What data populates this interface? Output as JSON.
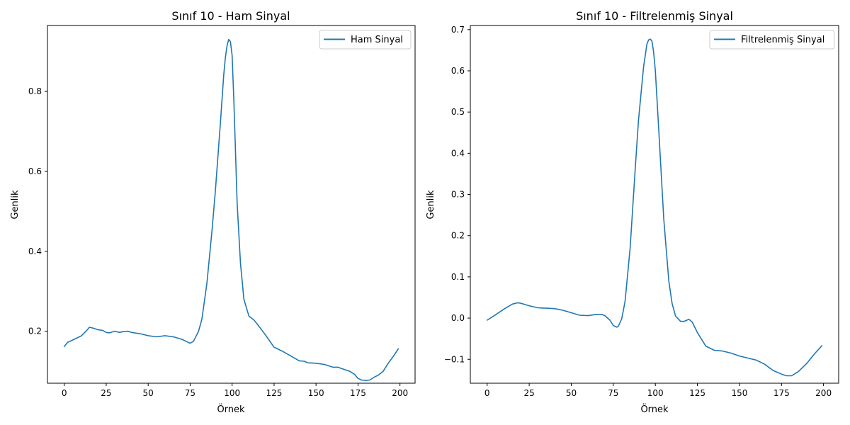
{
  "chart_data": [
    {
      "type": "line",
      "title": "Sınıf 10 - Ham Sinyal",
      "xlabel": "Örnek",
      "ylabel": "Genlik",
      "xlim": [
        -10,
        209
      ],
      "ylim": [
        0.07,
        0.965
      ],
      "xticks": [
        0,
        25,
        50,
        75,
        100,
        125,
        150,
        175,
        200
      ],
      "yticks": [
        0.2,
        0.4,
        0.6,
        0.8
      ],
      "ytick_labels": [
        "0.2",
        "0.4",
        "0.6",
        "0.8"
      ],
      "grid": false,
      "legend_position": "top-right",
      "series": [
        {
          "name": "Ham Sinyal",
          "color": "#1f77b4",
          "x": [
            0,
            2,
            5,
            10,
            13,
            15,
            17,
            20,
            23,
            25,
            27,
            30,
            33,
            35,
            38,
            40,
            45,
            50,
            55,
            60,
            65,
            70,
            73,
            75,
            77,
            80,
            82,
            85,
            88,
            90,
            93,
            95,
            96,
            97,
            98,
            99,
            100,
            101,
            103,
            105,
            107,
            110,
            113,
            115,
            120,
            125,
            130,
            135,
            140,
            143,
            145,
            150,
            155,
            160,
            163,
            165,
            170,
            173,
            175,
            177,
            180,
            182,
            185,
            187,
            190,
            193,
            196,
            199
          ],
          "y": [
            0.162,
            0.172,
            0.178,
            0.188,
            0.2,
            0.21,
            0.208,
            0.204,
            0.202,
            0.197,
            0.196,
            0.2,
            0.197,
            0.199,
            0.2,
            0.197,
            0.194,
            0.189,
            0.186,
            0.189,
            0.186,
            0.18,
            0.174,
            0.17,
            0.175,
            0.2,
            0.23,
            0.32,
            0.45,
            0.55,
            0.72,
            0.84,
            0.885,
            0.915,
            0.93,
            0.925,
            0.89,
            0.78,
            0.52,
            0.37,
            0.28,
            0.238,
            0.228,
            0.218,
            0.19,
            0.16,
            0.15,
            0.138,
            0.126,
            0.125,
            0.121,
            0.12,
            0.117,
            0.11,
            0.11,
            0.107,
            0.1,
            0.092,
            0.082,
            0.078,
            0.077,
            0.078,
            0.086,
            0.09,
            0.1,
            0.12,
            0.137,
            0.156
          ]
        }
      ]
    },
    {
      "type": "line",
      "title": "Sınıf 10 - Filtrelenmiş Sinyal",
      "xlabel": "Örnek",
      "ylabel": "Genlik",
      "xlim": [
        -10,
        209
      ],
      "ylim": [
        -0.158,
        0.71
      ],
      "xticks": [
        0,
        25,
        50,
        75,
        100,
        125,
        150,
        175,
        200
      ],
      "yticks": [
        -0.1,
        0.0,
        0.1,
        0.2,
        0.3,
        0.4,
        0.5,
        0.6,
        0.7
      ],
      "ytick_labels": [
        "−0.1",
        "0.0",
        "0.1",
        "0.2",
        "0.3",
        "0.4",
        "0.5",
        "0.6",
        "0.7"
      ],
      "grid": false,
      "legend_position": "top-right",
      "series": [
        {
          "name": "Filtrelenmiş Sinyal",
          "color": "#1f77b4",
          "x": [
            0,
            5,
            10,
            15,
            18,
            20,
            25,
            30,
            35,
            40,
            45,
            50,
            55,
            60,
            65,
            68,
            70,
            73,
            75,
            77,
            78,
            80,
            82,
            85,
            88,
            90,
            93,
            95,
            96,
            97,
            98,
            99,
            100,
            102,
            105,
            108,
            110,
            112,
            115,
            117,
            120,
            122,
            125,
            130,
            135,
            140,
            145,
            150,
            155,
            160,
            165,
            170,
            175,
            178,
            181,
            185,
            190,
            195,
            199
          ],
          "y": [
            -0.005,
            0.008,
            0.022,
            0.034,
            0.037,
            0.036,
            0.03,
            0.025,
            0.024,
            0.023,
            0.019,
            0.013,
            0.007,
            0.006,
            0.009,
            0.009,
            0.006,
            -0.005,
            -0.018,
            -0.022,
            -0.02,
            -0.002,
            0.04,
            0.17,
            0.36,
            0.48,
            0.61,
            0.665,
            0.675,
            0.677,
            0.672,
            0.645,
            0.6,
            0.46,
            0.24,
            0.09,
            0.035,
            0.005,
            -0.008,
            -0.008,
            -0.003,
            -0.01,
            -0.035,
            -0.068,
            -0.078,
            -0.08,
            -0.085,
            -0.092,
            -0.097,
            -0.102,
            -0.112,
            -0.127,
            -0.136,
            -0.14,
            -0.14,
            -0.13,
            -0.11,
            -0.085,
            -0.067
          ]
        }
      ]
    }
  ]
}
